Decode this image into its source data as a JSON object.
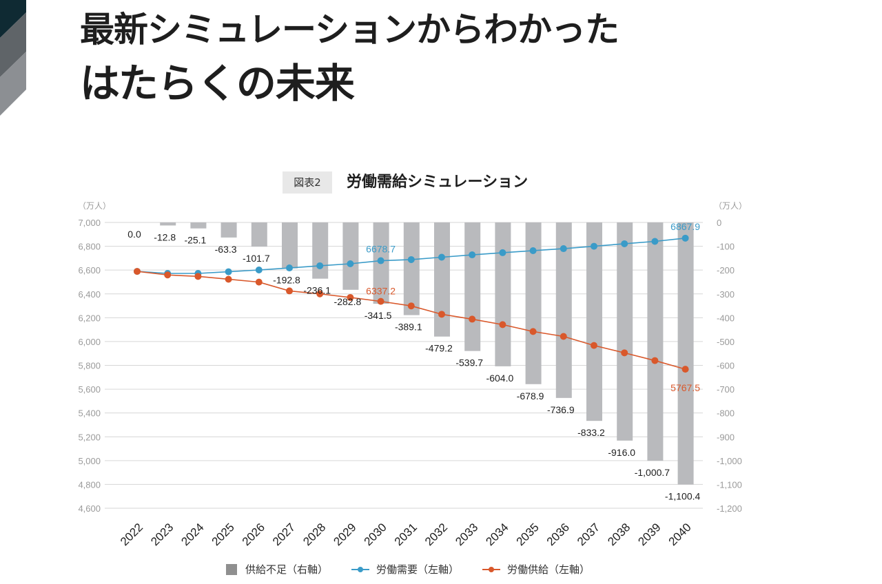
{
  "page": {
    "headline_line1": "最新シミュレーションからわかった",
    "headline_line2": "はたらくの未来",
    "figure_tag": "図表2",
    "figure_title": "労働需給シミュレーション"
  },
  "colors": {
    "demand": "#3a9bc8",
    "supply": "#d9582b",
    "shortage_bar": "#b9babd",
    "grid": "#d6d6d6",
    "corner_dark": "#0f2a33",
    "corner_mid": "#5f6468",
    "corner_light": "#8c8f93"
  },
  "chart_data": {
    "type": "bar+line",
    "title": "労働需給シミュレーション",
    "left_axis": {
      "unit_label": "（万人）",
      "range": [
        4600,
        7000
      ],
      "ticks": [
        "7,000",
        "6,800",
        "6,600",
        "6,400",
        "6,200",
        "6,000",
        "5,800",
        "5,600",
        "5,400",
        "5,200",
        "5,000",
        "4,800",
        "4,600"
      ]
    },
    "right_axis": {
      "unit_label": "（万人）",
      "range": [
        -1200,
        0
      ],
      "ticks": [
        "0",
        "-100",
        "-200",
        "-300",
        "-400",
        "-500",
        "-600",
        "-700",
        "-800",
        "-900",
        "-1,000",
        "-1,100",
        "-1,200"
      ]
    },
    "grid": true,
    "legend_position": "bottom",
    "categories": [
      "2022",
      "2023",
      "2024",
      "2025",
      "2026",
      "2027",
      "2028",
      "2029",
      "2030",
      "2031",
      "2032",
      "2033",
      "2034",
      "2035",
      "2036",
      "2037",
      "2038",
      "2039",
      "2040"
    ],
    "series": [
      {
        "name": "供給不足（右軸）",
        "axis": "right",
        "kind": "bar",
        "values": [
          0.0,
          -12.8,
          -25.1,
          -63.3,
          -101.7,
          -192.8,
          -236.1,
          -282.8,
          -341.5,
          -389.1,
          -479.2,
          -539.7,
          -604.0,
          -678.9,
          -736.9,
          -833.2,
          -916.0,
          -1000.7,
          -1100.4
        ],
        "labels": [
          "0.0",
          "-12.8",
          "-25.1",
          "-63.3",
          "-101.7",
          "-192.8",
          "-236.1",
          "-282.8",
          "-341.5",
          "-389.1",
          "-479.2",
          "-539.7",
          "-604.0",
          "-678.9",
          "-736.9",
          "-833.2",
          "-916.0",
          "-1,000.7",
          "-1,100.4"
        ]
      },
      {
        "name": "労働需要（左軸）",
        "axis": "left",
        "kind": "line",
        "values": [
          6589,
          6572,
          6572,
          6586,
          6601,
          6618,
          6636,
          6653,
          6678.7,
          6688,
          6708,
          6728,
          6746,
          6763,
          6780,
          6800,
          6821,
          6841,
          6867.9
        ],
        "annotations": [
          {
            "index": 8,
            "text": "6678.7"
          },
          {
            "index": 18,
            "text": "6867.9"
          }
        ]
      },
      {
        "name": "労働供給（左軸）",
        "axis": "left",
        "kind": "line",
        "values": [
          6589,
          6559,
          6547,
          6523,
          6499,
          6425,
          6400,
          6370,
          6337.2,
          6299,
          6229,
          6188,
          6142,
          6084,
          6043,
          5967,
          5905,
          5840,
          5767.5
        ],
        "annotations": [
          {
            "index": 8,
            "text": "6337.2"
          },
          {
            "index": 18,
            "text": "5767.5"
          }
        ]
      }
    ]
  }
}
